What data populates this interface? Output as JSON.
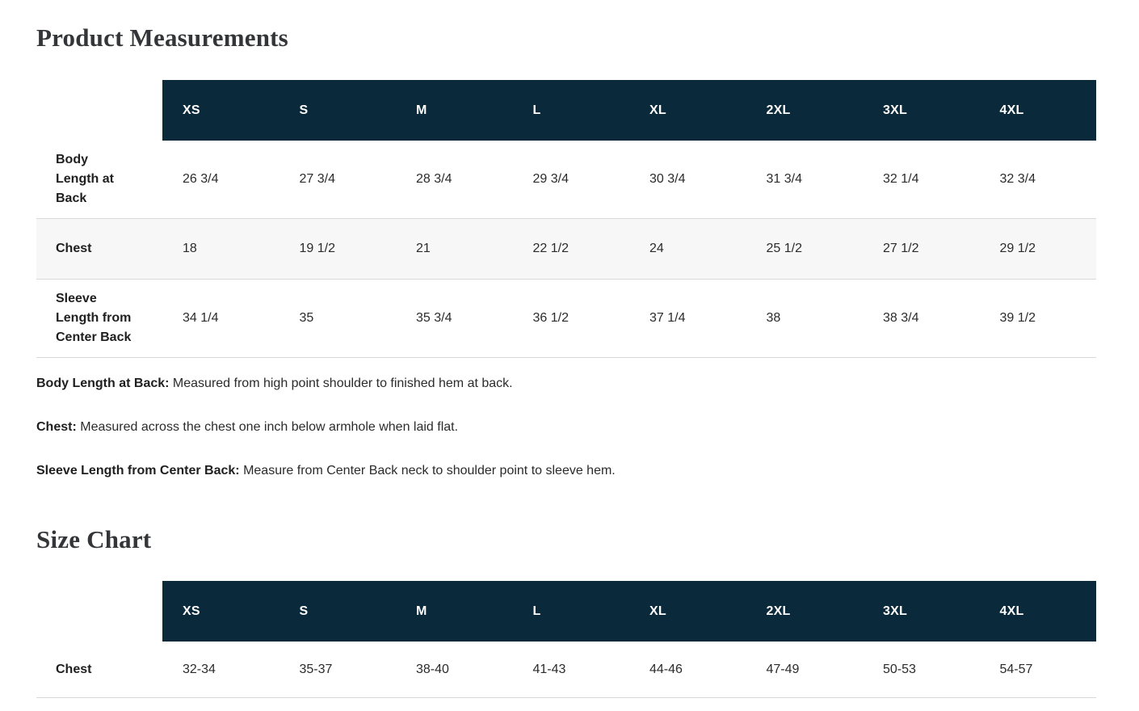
{
  "page": {
    "measurements_title": "Product Measurements",
    "size_chart_title": "Size Chart"
  },
  "measurements": {
    "columns": [
      "XS",
      "S",
      "M",
      "L",
      "XL",
      "2XL",
      "3XL",
      "4XL"
    ],
    "rows": [
      {
        "label": "Body Length at Back",
        "values": [
          "26 3/4",
          "27 3/4",
          "28 3/4",
          "29 3/4",
          "30 3/4",
          "31 3/4",
          "32 1/4",
          "32 3/4"
        ]
      },
      {
        "label": "Chest",
        "values": [
          "18",
          "19 1/2",
          "21",
          "22 1/2",
          "24",
          "25 1/2",
          "27 1/2",
          "29 1/2"
        ]
      },
      {
        "label": "Sleeve Length from Center Back",
        "values": [
          "34 1/4",
          "35",
          "35 3/4",
          "36 1/2",
          "37 1/4",
          "38",
          "38 3/4",
          "39 1/2"
        ]
      }
    ]
  },
  "definitions": [
    {
      "term": "Body Length at Back:",
      "description": "Measured from high point shoulder to finished hem at back."
    },
    {
      "term": "Chest:",
      "description": "Measured across the chest one inch below armhole when laid flat."
    },
    {
      "term": "Sleeve Length from Center Back:",
      "description": "Measure from Center Back neck to shoulder point to sleeve hem."
    }
  ],
  "size_chart": {
    "columns": [
      "XS",
      "S",
      "M",
      "L",
      "XL",
      "2XL",
      "3XL",
      "4XL"
    ],
    "rows": [
      {
        "label": "Chest",
        "values": [
          "32-34",
          "35-37",
          "38-40",
          "41-43",
          "44-46",
          "47-49",
          "50-53",
          "54-57"
        ]
      }
    ]
  },
  "colors": {
    "header_bg": "#0a2a3c",
    "stripe_bg": "#f7f7f7",
    "border": "#d8d8d8",
    "title_text": "#333538"
  }
}
